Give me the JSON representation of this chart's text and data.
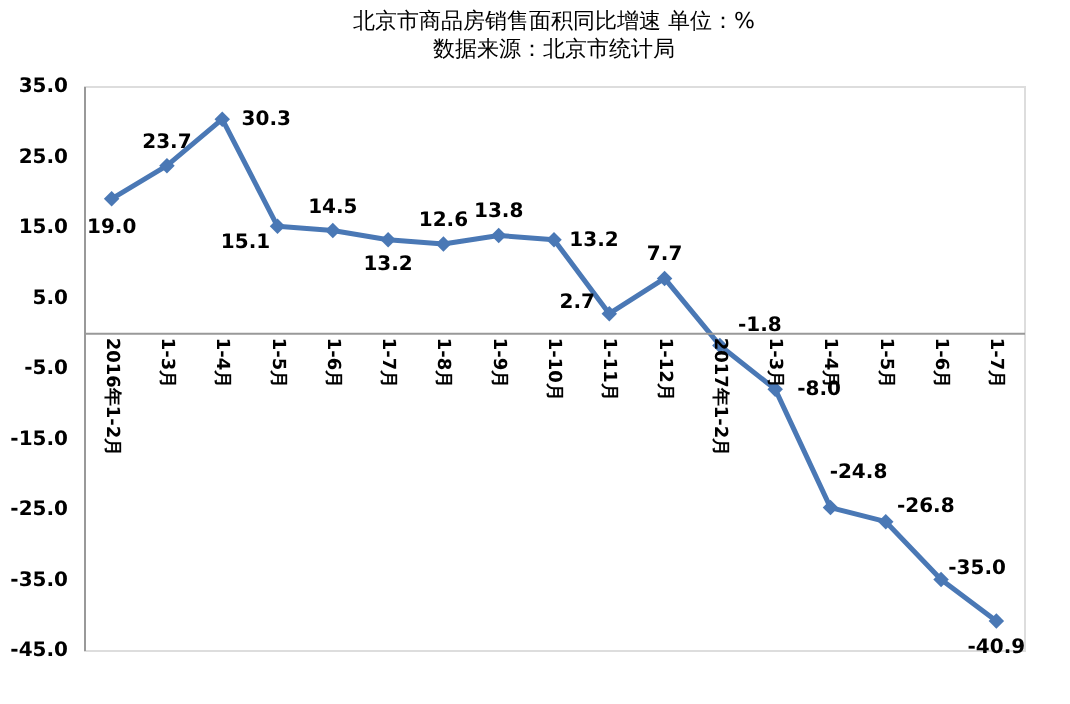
{
  "chart_data": {
    "type": "line",
    "title": "北京市商品房销售面积同比增速 单位：%",
    "subtitle": "数据来源：北京市统计局",
    "categories": [
      "2016年1-2月",
      "1-3月",
      "1-4月",
      "1-5月",
      "1-6月",
      "1-7月",
      "1-8月",
      "1-9月",
      "1-10月",
      "1-11月",
      "1-12月",
      "2017年1-2月",
      "1-3月",
      "1-4月",
      "1-5月",
      "1-6月",
      "1-7月"
    ],
    "series": [
      {
        "color": "#4a78b5",
        "values": [
          19.0,
          23.7,
          30.3,
          15.1,
          14.5,
          13.2,
          12.6,
          13.8,
          13.2,
          2.7,
          7.7,
          -1.8,
          -8.0,
          -24.8,
          -26.8,
          -35.0,
          -40.9
        ],
        "value_labels": [
          "19.0",
          "23.7",
          "30.3",
          "15.1",
          "14.5",
          "13.2",
          "12.6",
          "13.8",
          "13.2",
          "2.7",
          "7.7",
          "-1.8",
          "-8.0",
          "-24.8",
          "-26.8",
          "-35.0",
          "-40.9"
        ]
      }
    ],
    "ylim": [
      -45,
      35
    ],
    "yticks": [
      {
        "value": -45,
        "label": "-45.0"
      },
      {
        "value": -35,
        "label": "-35.0"
      },
      {
        "value": -25,
        "label": "-25.0"
      },
      {
        "value": -15,
        "label": "-15.0"
      },
      {
        "value": -5,
        "label": "-5.0"
      },
      {
        "value": 5,
        "label": "5.0"
      },
      {
        "value": 15,
        "label": "15.0"
      },
      {
        "value": 25,
        "label": "25.0"
      },
      {
        "value": 35,
        "label": "35.0"
      }
    ],
    "data_labels": true,
    "marker": "diamond",
    "grid": false,
    "legend": false
  }
}
